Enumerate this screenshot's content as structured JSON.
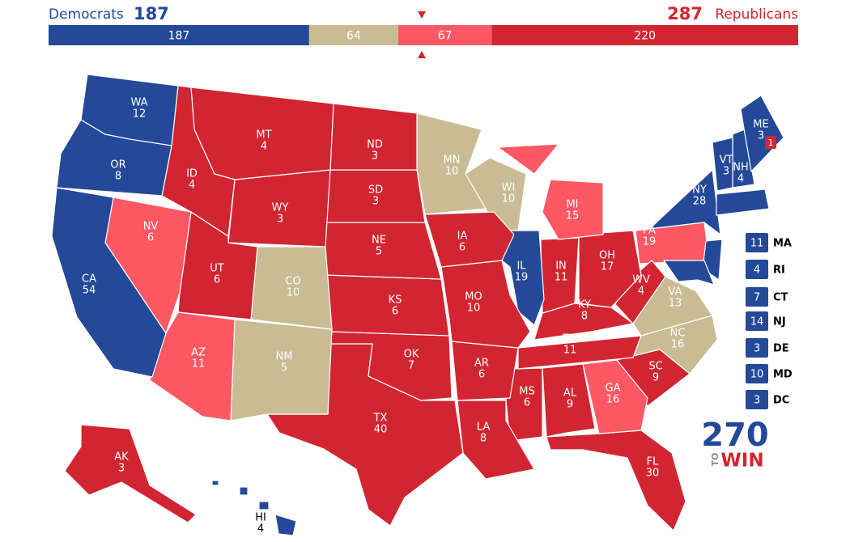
{
  "header": {
    "left_label": "Democrats",
    "left_total": 187,
    "right_total": 287,
    "right_label": "Republicans"
  },
  "bar": {
    "segments": [
      {
        "value": 187,
        "color": "#244999"
      },
      {
        "value": 64,
        "color": "#c9bc94"
      },
      {
        "value": 67,
        "color": "#ff5865"
      },
      {
        "value": 220,
        "color": "#d22532"
      }
    ]
  },
  "states": [
    {
      "abbr": "WA",
      "votes": 12,
      "color": "#244999"
    },
    {
      "abbr": "OR",
      "votes": 8,
      "color": "#244999"
    },
    {
      "abbr": "CA",
      "votes": 54,
      "color": "#244999"
    },
    {
      "abbr": "NV",
      "votes": 6,
      "color": "#ff5865"
    },
    {
      "abbr": "ID",
      "votes": 4,
      "color": "#d22532"
    },
    {
      "abbr": "MT",
      "votes": 4,
      "color": "#d22532"
    },
    {
      "abbr": "WY",
      "votes": 3,
      "color": "#d22532"
    },
    {
      "abbr": "UT",
      "votes": 6,
      "color": "#d22532"
    },
    {
      "abbr": "CO",
      "votes": 10,
      "color": "#c9bc94"
    },
    {
      "abbr": "AZ",
      "votes": 11,
      "color": "#ff5865"
    },
    {
      "abbr": "NM",
      "votes": 5,
      "color": "#c9bc94"
    },
    {
      "abbr": "ND",
      "votes": 3,
      "color": "#d22532"
    },
    {
      "abbr": "SD",
      "votes": 3,
      "color": "#d22532"
    },
    {
      "abbr": "NE",
      "votes": 5,
      "color": "#d22532"
    },
    {
      "abbr": "KS",
      "votes": 6,
      "color": "#d22532"
    },
    {
      "abbr": "OK",
      "votes": 7,
      "color": "#d22532"
    },
    {
      "abbr": "TX",
      "votes": 40,
      "color": "#d22532"
    },
    {
      "abbr": "MN",
      "votes": 10,
      "color": "#c9bc94"
    },
    {
      "abbr": "IA",
      "votes": 6,
      "color": "#d22532"
    },
    {
      "abbr": "MO",
      "votes": 10,
      "color": "#d22532"
    },
    {
      "abbr": "AR",
      "votes": 6,
      "color": "#d22532"
    },
    {
      "abbr": "LA",
      "votes": 8,
      "color": "#d22532"
    },
    {
      "abbr": "WI",
      "votes": 10,
      "color": "#c9bc94"
    },
    {
      "abbr": "IL",
      "votes": 19,
      "color": "#244999"
    },
    {
      "abbr": "MI",
      "votes": 15,
      "color": "#ff5865"
    },
    {
      "abbr": "IN",
      "votes": 11,
      "color": "#d22532"
    },
    {
      "abbr": "OH",
      "votes": 17,
      "color": "#d22532"
    },
    {
      "abbr": "KY",
      "votes": 8,
      "color": "#d22532"
    },
    {
      "abbr": "TN",
      "votes": 11,
      "color": "#d22532"
    },
    {
      "abbr": "MS",
      "votes": 6,
      "color": "#d22532"
    },
    {
      "abbr": "AL",
      "votes": 9,
      "color": "#d22532"
    },
    {
      "abbr": "GA",
      "votes": 16,
      "color": "#ff5865"
    },
    {
      "abbr": "FL",
      "votes": 30,
      "color": "#d22532"
    },
    {
      "abbr": "SC",
      "votes": 9,
      "color": "#d22532"
    },
    {
      "abbr": "NC",
      "votes": 16,
      "color": "#c9bc94"
    },
    {
      "abbr": "VA",
      "votes": 13,
      "color": "#c9bc94"
    },
    {
      "abbr": "WV",
      "votes": 4,
      "color": "#d22532"
    },
    {
      "abbr": "PA",
      "votes": 19,
      "color": "#ff5865"
    },
    {
      "abbr": "NY",
      "votes": 28,
      "color": "#244999"
    },
    {
      "abbr": "ME",
      "votes": 3,
      "color": "#244999"
    },
    {
      "abbr": "VT",
      "votes": 3,
      "color": "#244999"
    },
    {
      "abbr": "NH",
      "votes": 4,
      "color": "#244999"
    },
    {
      "abbr": "AK",
      "votes": 3,
      "color": "#d22532"
    },
    {
      "abbr": "HI",
      "votes": 4,
      "color": "#244999"
    }
  ],
  "small_states": [
    {
      "votes": 11,
      "abbr": "MA",
      "color": "#244999"
    },
    {
      "votes": 4,
      "abbr": "RI",
      "color": "#244999"
    },
    {
      "votes": 7,
      "abbr": "CT",
      "color": "#244999"
    },
    {
      "votes": 14,
      "abbr": "NJ",
      "color": "#244999"
    },
    {
      "votes": 3,
      "abbr": "DE",
      "color": "#244999"
    },
    {
      "votes": 10,
      "abbr": "MD",
      "color": "#244999"
    },
    {
      "votes": 3,
      "abbr": "DC",
      "color": "#244999"
    }
  ],
  "maine_district": {
    "votes": 1,
    "color": "#d22532"
  },
  "logo": {
    "number": "270",
    "to": "TO",
    "win": "WIN"
  }
}
